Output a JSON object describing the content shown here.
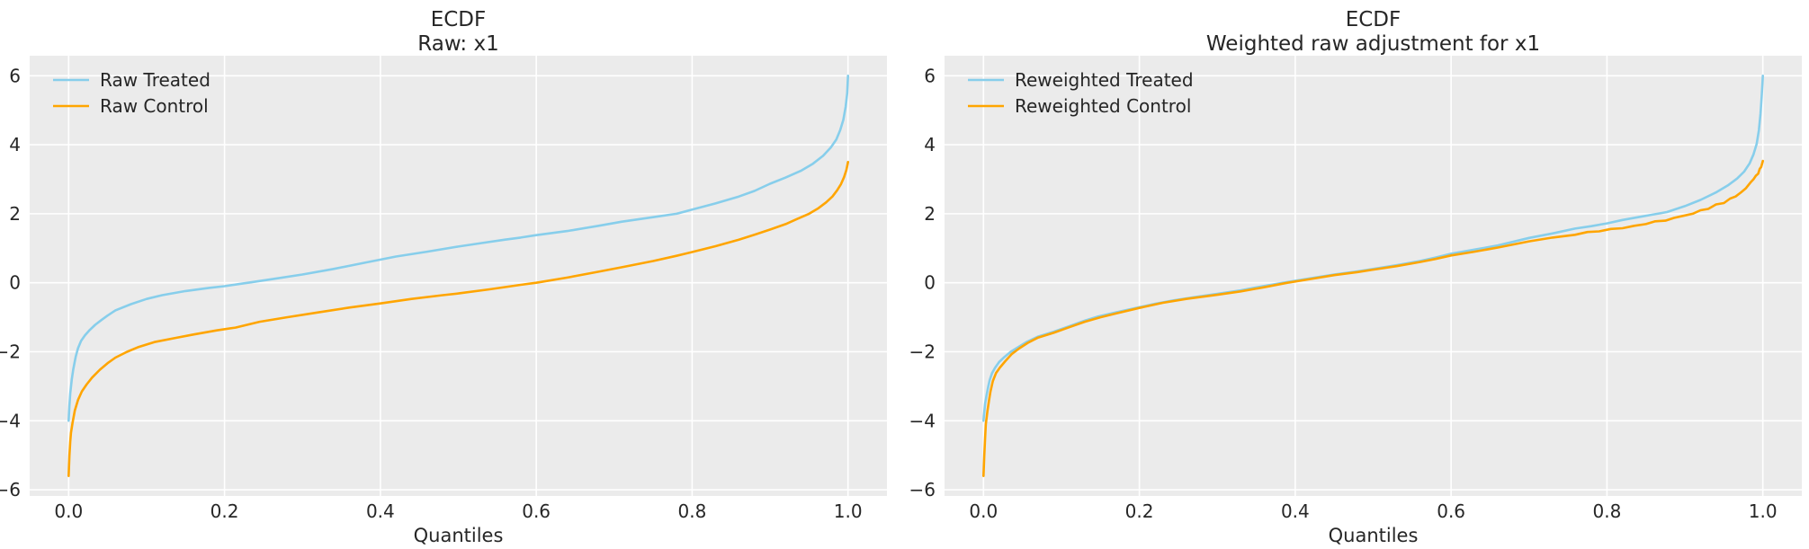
{
  "styles": {
    "figure_bg": "#ffffff",
    "panel_bg": "#ebebeb",
    "grid_color": "#ffffff",
    "text_color": "#262626",
    "treated_color": "#87CEEB",
    "control_color": "#FFA500"
  },
  "chart_data": [
    {
      "type": "line",
      "id": "raw",
      "title_lines": [
        "ECDF",
        "Raw: x1"
      ],
      "xlabel": "Quantiles",
      "ylabel": "",
      "xlim": [
        -0.05,
        1.05
      ],
      "ylim": [
        -6.18,
        6.58
      ],
      "grid": true,
      "legend_position": "upper-left",
      "xticks": {
        "values": [
          0.0,
          0.2,
          0.4,
          0.6,
          0.8,
          1.0
        ],
        "labels": [
          "0.0",
          "0.2",
          "0.4",
          "0.6",
          "0.8",
          "1.0"
        ]
      },
      "yticks": {
        "values": [
          -6,
          -4,
          -2,
          0,
          2,
          4,
          6
        ],
        "labels": [
          "−6",
          "−4",
          "−2",
          "0",
          "2",
          "4",
          "6"
        ]
      },
      "series": [
        {
          "name": "Raw Treated",
          "color": "#87CEEB",
          "points": [
            [
              0,
              -4.0
            ],
            [
              0.001,
              -3.55
            ],
            [
              0.002,
              -3.2
            ],
            [
              0.004,
              -2.8
            ],
            [
              0.006,
              -2.5
            ],
            [
              0.009,
              -2.15
            ],
            [
              0.012,
              -1.9
            ],
            [
              0.016,
              -1.68
            ],
            [
              0.021,
              -1.52
            ],
            [
              0.027,
              -1.37
            ],
            [
              0.034,
              -1.22
            ],
            [
              0.042,
              -1.08
            ],
            [
              0.05,
              -0.95
            ],
            [
              0.06,
              -0.8
            ],
            [
              0.08,
              -0.62
            ],
            [
              0.1,
              -0.47
            ],
            [
              0.12,
              -0.36
            ],
            [
              0.15,
              -0.24
            ],
            [
              0.18,
              -0.15
            ],
            [
              0.2,
              -0.1
            ],
            [
              0.23,
              0.0
            ],
            [
              0.26,
              0.1
            ],
            [
              0.3,
              0.24
            ],
            [
              0.34,
              0.4
            ],
            [
              0.38,
              0.58
            ],
            [
              0.42,
              0.76
            ],
            [
              0.46,
              0.9
            ],
            [
              0.5,
              1.05
            ],
            [
              0.53,
              1.15
            ],
            [
              0.56,
              1.25
            ],
            [
              0.58,
              1.31
            ],
            [
              0.6,
              1.38
            ],
            [
              0.64,
              1.5
            ],
            [
              0.68,
              1.65
            ],
            [
              0.71,
              1.77
            ],
            [
              0.75,
              1.9
            ],
            [
              0.78,
              2.0
            ],
            [
              0.8,
              2.12
            ],
            [
              0.83,
              2.3
            ],
            [
              0.86,
              2.5
            ],
            [
              0.88,
              2.66
            ],
            [
              0.9,
              2.87
            ],
            [
              0.92,
              3.05
            ],
            [
              0.94,
              3.25
            ],
            [
              0.955,
              3.45
            ],
            [
              0.968,
              3.68
            ],
            [
              0.978,
              3.92
            ],
            [
              0.985,
              4.15
            ],
            [
              0.99,
              4.42
            ],
            [
              0.994,
              4.72
            ],
            [
              0.997,
              5.1
            ],
            [
              0.999,
              5.5
            ],
            [
              1,
              6.0
            ]
          ]
        },
        {
          "name": "Raw Control",
          "color": "#FFA500",
          "points": [
            [
              0,
              -5.6
            ],
            [
              0.001,
              -5.0
            ],
            [
              0.002,
              -4.6
            ],
            [
              0.003,
              -4.35
            ],
            [
              0.005,
              -4.05
            ],
            [
              0.008,
              -3.7
            ],
            [
              0.012,
              -3.4
            ],
            [
              0.017,
              -3.15
            ],
            [
              0.023,
              -2.95
            ],
            [
              0.03,
              -2.75
            ],
            [
              0.04,
              -2.52
            ],
            [
              0.05,
              -2.33
            ],
            [
              0.06,
              -2.17
            ],
            [
              0.075,
              -2.0
            ],
            [
              0.09,
              -1.86
            ],
            [
              0.11,
              -1.72
            ],
            [
              0.137,
              -1.6
            ],
            [
              0.16,
              -1.5
            ],
            [
              0.19,
              -1.38
            ],
            [
              0.214,
              -1.3
            ],
            [
              0.245,
              -1.13
            ],
            [
              0.28,
              -1.0
            ],
            [
              0.32,
              -0.86
            ],
            [
              0.36,
              -0.72
            ],
            [
              0.4,
              -0.6
            ],
            [
              0.44,
              -0.47
            ],
            [
              0.48,
              -0.36
            ],
            [
              0.5,
              -0.31
            ],
            [
              0.54,
              -0.19
            ],
            [
              0.58,
              -0.06
            ],
            [
              0.6,
              0.0
            ],
            [
              0.64,
              0.15
            ],
            [
              0.68,
              0.32
            ],
            [
              0.71,
              0.45
            ],
            [
              0.75,
              0.63
            ],
            [
              0.78,
              0.78
            ],
            [
              0.8,
              0.89
            ],
            [
              0.83,
              1.06
            ],
            [
              0.86,
              1.25
            ],
            [
              0.88,
              1.39
            ],
            [
              0.9,
              1.54
            ],
            [
              0.92,
              1.7
            ],
            [
              0.935,
              1.85
            ],
            [
              0.95,
              2.0
            ],
            [
              0.962,
              2.16
            ],
            [
              0.972,
              2.33
            ],
            [
              0.98,
              2.5
            ],
            [
              0.986,
              2.68
            ],
            [
              0.991,
              2.86
            ],
            [
              0.995,
              3.06
            ],
            [
              0.998,
              3.27
            ],
            [
              1,
              3.5
            ]
          ]
        }
      ]
    },
    {
      "type": "line",
      "id": "weighted",
      "title_lines": [
        "ECDF",
        "Weighted raw adjustment for x1"
      ],
      "xlabel": "Quantiles",
      "ylabel": "",
      "xlim": [
        -0.05,
        1.05
      ],
      "ylim": [
        -6.18,
        6.58
      ],
      "grid": true,
      "legend_position": "upper-left",
      "xticks": {
        "values": [
          0.0,
          0.2,
          0.4,
          0.6,
          0.8,
          1.0
        ],
        "labels": [
          "0.0",
          "0.2",
          "0.4",
          "0.6",
          "0.8",
          "1.0"
        ]
      },
      "yticks": {
        "values": [
          -6,
          -4,
          -2,
          0,
          2,
          4,
          6
        ],
        "labels": [
          "−6",
          "−4",
          "−2",
          "0",
          "2",
          "4",
          "6"
        ]
      },
      "series": [
        {
          "name": "Reweighted Treated",
          "color": "#87CEEB",
          "points": [
            [
              0,
              -4.0
            ],
            [
              0.002,
              -3.5
            ],
            [
              0.004,
              -3.25
            ],
            [
              0.006,
              -3.02
            ],
            [
              0.008,
              -2.82
            ],
            [
              0.011,
              -2.62
            ],
            [
              0.015,
              -2.46
            ],
            [
              0.02,
              -2.3
            ],
            [
              0.027,
              -2.15
            ],
            [
              0.035,
              -2.0
            ],
            [
              0.045,
              -1.86
            ],
            [
              0.055,
              -1.72
            ],
            [
              0.07,
              -1.56
            ],
            [
              0.09,
              -1.42
            ],
            [
              0.11,
              -1.26
            ],
            [
              0.13,
              -1.1
            ],
            [
              0.147,
              -0.98
            ],
            [
              0.17,
              -0.86
            ],
            [
              0.2,
              -0.71
            ],
            [
              0.22,
              -0.61
            ],
            [
              0.244,
              -0.51
            ],
            [
              0.27,
              -0.42
            ],
            [
              0.3,
              -0.32
            ],
            [
              0.33,
              -0.22
            ],
            [
              0.356,
              -0.11
            ],
            [
              0.39,
              0.02
            ],
            [
              0.42,
              0.13
            ],
            [
              0.45,
              0.24
            ],
            [
              0.48,
              0.33
            ],
            [
              0.5,
              0.4
            ],
            [
              0.53,
              0.51
            ],
            [
              0.56,
              0.63
            ],
            [
              0.58,
              0.73
            ],
            [
              0.6,
              0.84
            ],
            [
              0.63,
              0.96
            ],
            [
              0.66,
              1.08
            ],
            [
              0.7,
              1.3
            ],
            [
              0.73,
              1.43
            ],
            [
              0.759,
              1.57
            ],
            [
              0.78,
              1.64
            ],
            [
              0.8,
              1.72
            ],
            [
              0.82,
              1.82
            ],
            [
              0.84,
              1.9
            ],
            [
              0.86,
              1.98
            ],
            [
              0.877,
              2.05
            ],
            [
              0.9,
              2.22
            ],
            [
              0.92,
              2.4
            ],
            [
              0.94,
              2.62
            ],
            [
              0.955,
              2.82
            ],
            [
              0.967,
              3.02
            ],
            [
              0.976,
              3.22
            ],
            [
              0.983,
              3.46
            ],
            [
              0.988,
              3.72
            ],
            [
              0.992,
              4.02
            ],
            [
              0.995,
              4.42
            ],
            [
              0.997,
              4.9
            ],
            [
              0.9985,
              5.4
            ],
            [
              1,
              6.0
            ]
          ]
        },
        {
          "name": "Reweighted Control",
          "color": "#FFA500",
          "points": [
            [
              0,
              -5.6
            ],
            [
              0.001,
              -5.0
            ],
            [
              0.002,
              -4.5
            ],
            [
              0.003,
              -4.1
            ],
            [
              0.005,
              -3.72
            ],
            [
              0.007,
              -3.42
            ],
            [
              0.009,
              -3.15
            ],
            [
              0.012,
              -2.85
            ],
            [
              0.016,
              -2.62
            ],
            [
              0.021,
              -2.46
            ],
            [
              0.028,
              -2.27
            ],
            [
              0.036,
              -2.07
            ],
            [
              0.046,
              -1.9
            ],
            [
              0.057,
              -1.74
            ],
            [
              0.07,
              -1.59
            ],
            [
              0.09,
              -1.45
            ],
            [
              0.11,
              -1.29
            ],
            [
              0.13,
              -1.13
            ],
            [
              0.15,
              -1.0
            ],
            [
              0.17,
              -0.89
            ],
            [
              0.2,
              -0.73
            ],
            [
              0.23,
              -0.58
            ],
            [
              0.26,
              -0.47
            ],
            [
              0.3,
              -0.35
            ],
            [
              0.33,
              -0.25
            ],
            [
              0.36,
              -0.13
            ],
            [
              0.39,
              0.0
            ],
            [
              0.42,
              0.11
            ],
            [
              0.45,
              0.22
            ],
            [
              0.48,
              0.31
            ],
            [
              0.5,
              0.38
            ],
            [
              0.53,
              0.48
            ],
            [
              0.56,
              0.6
            ],
            [
              0.58,
              0.69
            ],
            [
              0.6,
              0.79
            ],
            [
              0.63,
              0.9
            ],
            [
              0.66,
              1.02
            ],
            [
              0.7,
              1.2
            ],
            [
              0.73,
              1.31
            ],
            [
              0.759,
              1.39
            ],
            [
              0.775,
              1.47
            ],
            [
              0.79,
              1.49
            ],
            [
              0.805,
              1.56
            ],
            [
              0.82,
              1.58
            ],
            [
              0.835,
              1.65
            ],
            [
              0.85,
              1.7
            ],
            [
              0.862,
              1.78
            ],
            [
              0.875,
              1.8
            ],
            [
              0.886,
              1.88
            ],
            [
              0.898,
              1.94
            ],
            [
              0.91,
              2.0
            ],
            [
              0.92,
              2.1
            ],
            [
              0.93,
              2.14
            ],
            [
              0.94,
              2.27
            ],
            [
              0.95,
              2.31
            ],
            [
              0.958,
              2.44
            ],
            [
              0.965,
              2.5
            ],
            [
              0.972,
              2.62
            ],
            [
              0.978,
              2.73
            ],
            [
              0.984,
              2.9
            ],
            [
              0.988,
              3.0
            ],
            [
              0.991,
              3.1
            ],
            [
              0.994,
              3.16
            ],
            [
              0.996,
              3.3
            ],
            [
              0.998,
              3.36
            ],
            [
              1,
              3.53
            ]
          ]
        }
      ]
    }
  ]
}
